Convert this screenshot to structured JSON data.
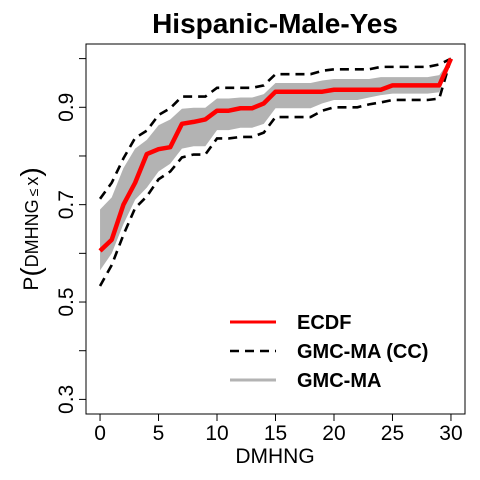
{
  "chart_data": {
    "type": "line",
    "title": "Hispanic-Male-Yes",
    "xlabel": "DMHNG",
    "ylabel": {
      "prefix": "P",
      "var": "DMHNG",
      "op": "≤",
      "arg": "x"
    },
    "xlim": [
      -1.2,
      31.2
    ],
    "ylim": [
      0.27,
      1.03
    ],
    "xticks": [
      0,
      5,
      10,
      15,
      20,
      25,
      30
    ],
    "yticks": [
      0.3,
      0.5,
      0.7,
      0.9
    ],
    "yminor_ticks": [
      0.4,
      0.6,
      0.8,
      1.0
    ],
    "series": [
      {
        "name": "ECDF",
        "style": "solid",
        "color": "#ff0000",
        "x": [
          0,
          1,
          2,
          3,
          4,
          5,
          6,
          7,
          8,
          9,
          10,
          11,
          12,
          13,
          14,
          15,
          16,
          17,
          18,
          19,
          20,
          21,
          22,
          23,
          24,
          25,
          26,
          27,
          28,
          29,
          30
        ],
        "y": [
          0.605,
          0.628,
          0.7,
          0.745,
          0.804,
          0.814,
          0.818,
          0.866,
          0.87,
          0.875,
          0.893,
          0.893,
          0.898,
          0.898,
          0.908,
          0.932,
          0.932,
          0.932,
          0.932,
          0.932,
          0.936,
          0.936,
          0.936,
          0.936,
          0.936,
          0.945,
          0.945,
          0.945,
          0.945,
          0.945,
          1.0
        ]
      },
      {
        "name": "GMC-MA (CC)",
        "style": "dashed",
        "color": "#000000",
        "x": [
          0,
          1,
          2,
          3,
          4,
          5,
          6,
          7,
          8,
          9,
          10,
          11,
          12,
          13,
          14,
          15,
          16,
          17,
          18,
          19,
          20,
          21,
          22,
          23,
          24,
          25,
          26,
          27,
          28,
          29,
          30
        ],
        "upper": [
          0.712,
          0.745,
          0.795,
          0.837,
          0.852,
          0.884,
          0.898,
          0.922,
          0.922,
          0.922,
          0.94,
          0.94,
          0.94,
          0.94,
          0.945,
          0.968,
          0.968,
          0.968,
          0.968,
          0.975,
          0.978,
          0.978,
          0.978,
          0.978,
          0.983,
          0.983,
          0.983,
          0.983,
          0.983,
          0.988,
          1.0
        ],
        "lower": [
          0.533,
          0.576,
          0.638,
          0.693,
          0.717,
          0.752,
          0.768,
          0.797,
          0.803,
          0.803,
          0.836,
          0.836,
          0.839,
          0.839,
          0.848,
          0.88,
          0.88,
          0.88,
          0.88,
          0.893,
          0.9,
          0.9,
          0.9,
          0.906,
          0.91,
          0.915,
          0.915,
          0.915,
          0.915,
          0.918,
          1.0
        ]
      },
      {
        "name": "GMC-MA",
        "style": "band",
        "color": "#b3b3b3",
        "x": [
          0,
          1,
          2,
          3,
          4,
          5,
          6,
          7,
          8,
          9,
          10,
          11,
          12,
          13,
          14,
          15,
          16,
          17,
          18,
          19,
          20,
          21,
          22,
          23,
          24,
          25,
          26,
          27,
          28,
          29,
          30
        ],
        "upper": [
          0.69,
          0.715,
          0.775,
          0.815,
          0.833,
          0.863,
          0.875,
          0.897,
          0.899,
          0.899,
          0.918,
          0.918,
          0.92,
          0.92,
          0.927,
          0.95,
          0.95,
          0.95,
          0.95,
          0.955,
          0.958,
          0.958,
          0.958,
          0.958,
          0.962,
          0.962,
          0.962,
          0.962,
          0.962,
          0.966,
          1.0
        ],
        "lower": [
          0.565,
          0.6,
          0.66,
          0.71,
          0.735,
          0.768,
          0.784,
          0.815,
          0.82,
          0.82,
          0.853,
          0.853,
          0.858,
          0.858,
          0.866,
          0.898,
          0.898,
          0.898,
          0.898,
          0.908,
          0.915,
          0.915,
          0.915,
          0.92,
          0.925,
          0.928,
          0.928,
          0.928,
          0.928,
          0.931,
          1.0
        ]
      }
    ],
    "legend": {
      "placement": "bottom-right",
      "entries": [
        "ECDF",
        "GMC-MA (CC)",
        "GMC-MA"
      ]
    }
  }
}
